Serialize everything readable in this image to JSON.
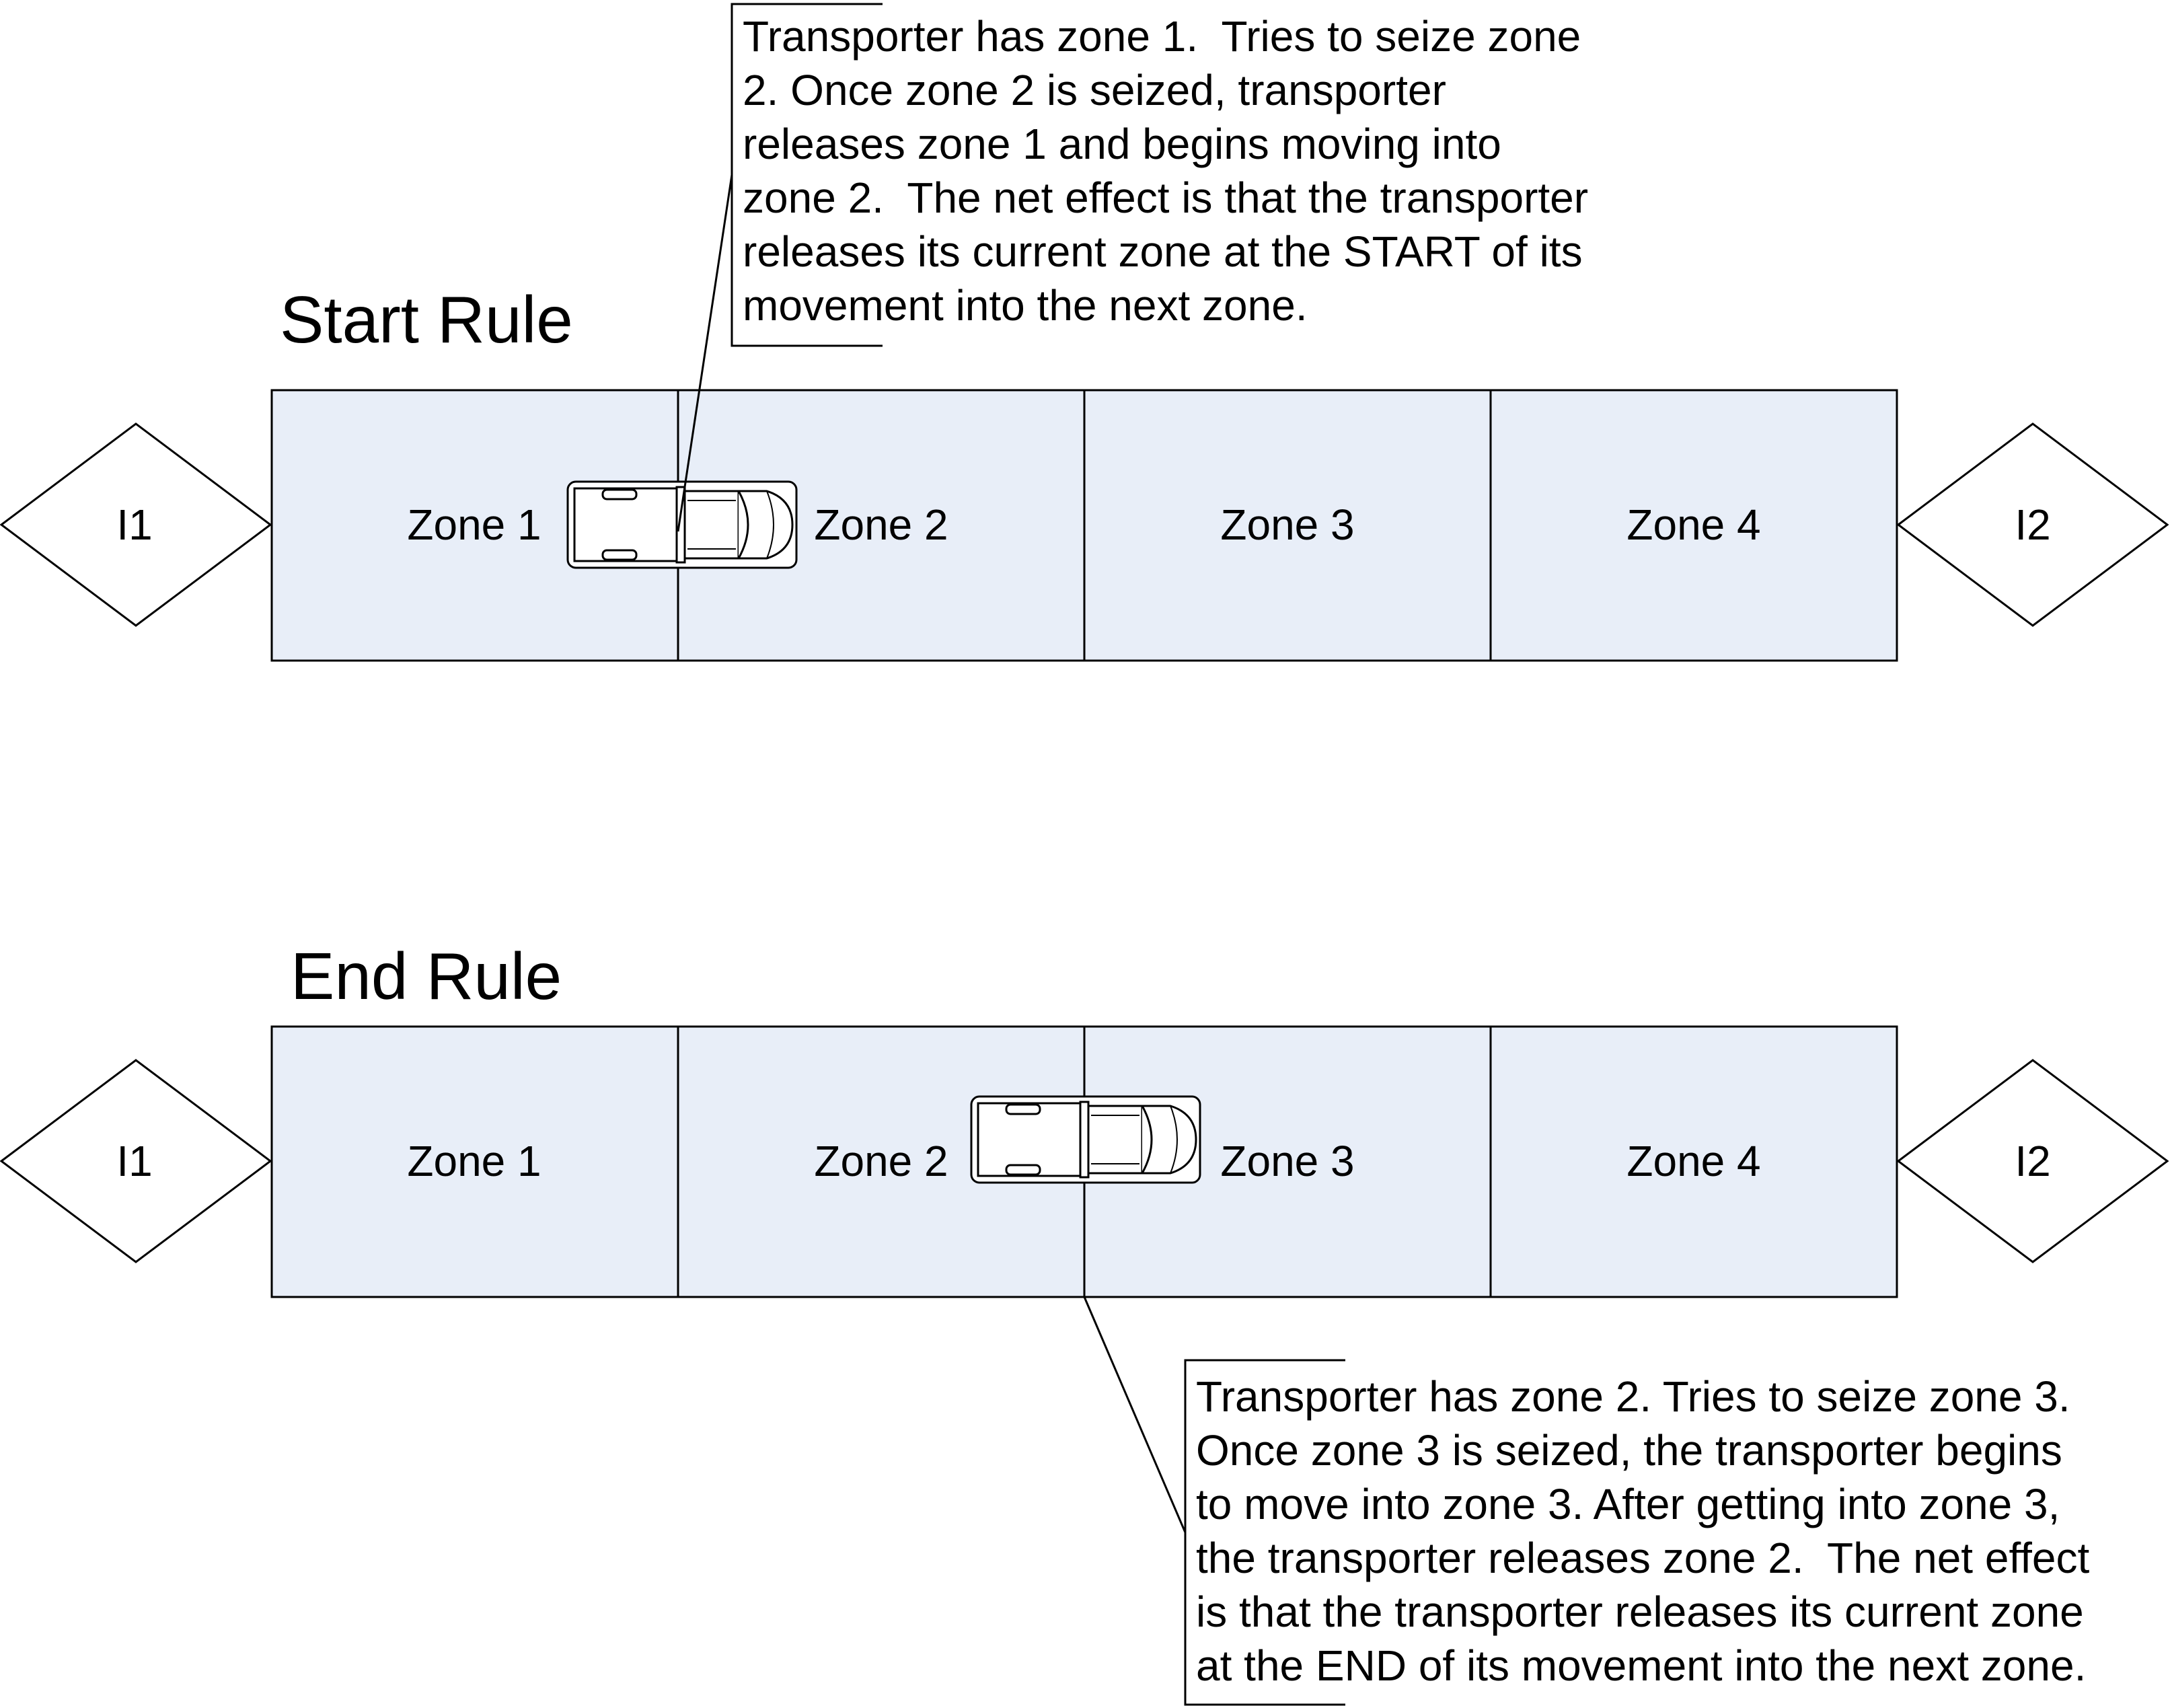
{
  "colors": {
    "zone_fill": "#e8eef8",
    "stroke": "#000000",
    "background": "#ffffff"
  },
  "start_rule": {
    "title": "Start Rule",
    "zones": [
      "Zone 1",
      "Zone 2",
      "Zone 3",
      "Zone 4"
    ],
    "entry_node": "I1",
    "exit_node": "I2",
    "callout": "Transporter has zone 1.  Tries to seize zone\n2. Once zone 2 is seized, transporter\nreleases zone 1 and begins moving into\nzone 2.  The net effect is that the transporter\nreleases its current zone at the START of its\nmovement into the next zone."
  },
  "end_rule": {
    "title": "End Rule",
    "zones": [
      "Zone 1",
      "Zone 2",
      "Zone 3",
      "Zone 4"
    ],
    "entry_node": "I1",
    "exit_node": "I2",
    "callout": "Transporter has zone 2. Tries to seize zone 3.\nOnce zone 3 is seized, the transporter begins\nto move into zone 3. After getting into zone 3,\nthe transporter releases zone 2.  The net effect\nis that the transporter releases its current zone\nat the END of its movement into the next zone."
  }
}
